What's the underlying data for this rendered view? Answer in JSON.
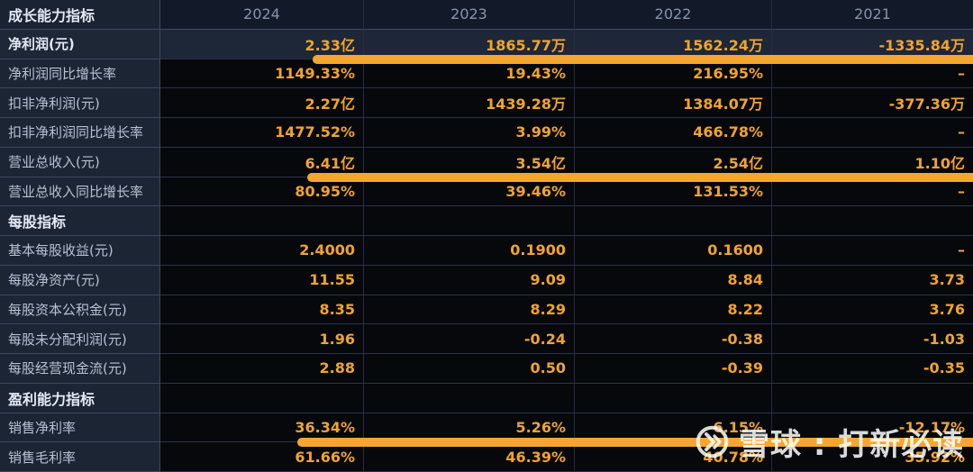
{
  "table": {
    "header": {
      "label": "成长能力指标",
      "years": [
        "2024",
        "2023",
        "2022",
        "2021"
      ]
    },
    "rows": [
      {
        "type": "data",
        "highlight": true,
        "bar": true,
        "label": "净利润(元)",
        "values": [
          "2.33亿",
          "1865.77万",
          "1562.24万",
          "-1335.84万"
        ]
      },
      {
        "type": "data",
        "label": "净利润同比增长率",
        "values": [
          "1149.33%",
          "19.43%",
          "216.95%",
          "–"
        ]
      },
      {
        "type": "data",
        "label": "扣非净利润(元)",
        "values": [
          "2.27亿",
          "1439.28万",
          "1384.07万",
          "-377.36万"
        ]
      },
      {
        "type": "data",
        "label": "扣非净利润同比增长率",
        "values": [
          "1477.52%",
          "3.99%",
          "466.78%",
          "–"
        ]
      },
      {
        "type": "data",
        "bar": true,
        "label": "营业总收入(元)",
        "values": [
          "6.41亿",
          "3.54亿",
          "2.54亿",
          "1.10亿"
        ]
      },
      {
        "type": "data",
        "label": "营业总收入同比增长率",
        "values": [
          "80.95%",
          "39.46%",
          "131.53%",
          "–"
        ]
      },
      {
        "type": "section",
        "label": "每股指标",
        "values": [
          "",
          "",
          "",
          ""
        ]
      },
      {
        "type": "data",
        "label": "基本每股收益(元)",
        "values": [
          "2.4000",
          "0.1900",
          "0.1600",
          "–"
        ]
      },
      {
        "type": "data",
        "label": "每股净资产(元)",
        "values": [
          "11.55",
          "9.09",
          "8.84",
          "3.73"
        ]
      },
      {
        "type": "data",
        "label": "每股资本公积金(元)",
        "values": [
          "8.35",
          "8.29",
          "8.22",
          "3.76"
        ]
      },
      {
        "type": "data",
        "label": "每股未分配利润(元)",
        "values": [
          "1.96",
          "-0.24",
          "-0.38",
          "-1.03"
        ]
      },
      {
        "type": "data",
        "label": "每股经营现金流(元)",
        "values": [
          "2.88",
          "0.50",
          "-0.39",
          "-0.35"
        ]
      },
      {
        "type": "section",
        "label": "盈利能力指标",
        "values": [
          "",
          "",
          "",
          ""
        ]
      },
      {
        "type": "data",
        "bar": true,
        "label": "销售净利率",
        "values": [
          "36.34%",
          "5.26%",
          "6.15%",
          "-12.17%"
        ]
      },
      {
        "type": "data",
        "label": "销售毛利率",
        "values": [
          "61.66%",
          "46.39%",
          "40.78%",
          "35.92%"
        ]
      }
    ]
  },
  "watermark": {
    "logo": "xueqiu-logo",
    "text": "雪球 : 打新必读"
  },
  "colors": {
    "value_orange": "#f0a42f",
    "marker_bar_orange": "#f6a62e",
    "label_gray": "#b7c1d4",
    "section_white": "#e4eaf5",
    "year_gray": "#8893a9",
    "label_column_bg": "#1c2534",
    "header_row_bg": "#121a29",
    "highlight_row_bg": "#1d2737",
    "data_cell_bg": "#07080b",
    "grid_line": "#29334a"
  }
}
